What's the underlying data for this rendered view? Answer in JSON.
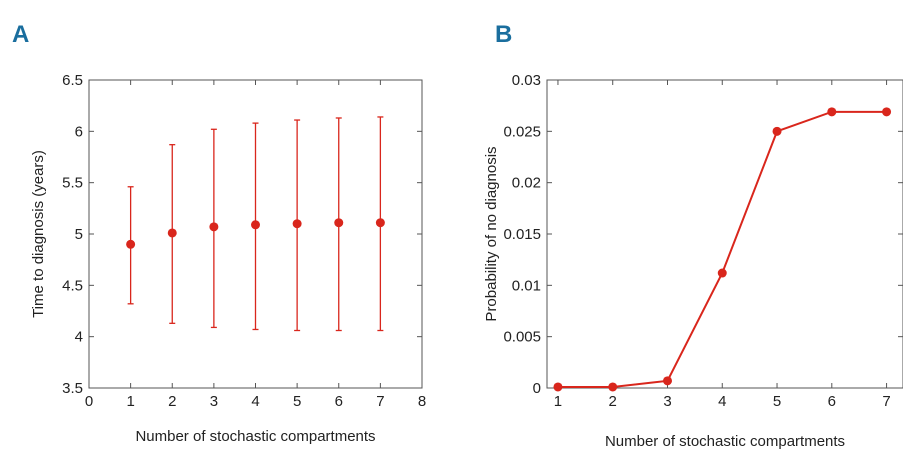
{
  "chart_data": [
    {
      "panel": "A",
      "type": "scatter",
      "error_bars": true,
      "xlabel": "Number of stochastic compartments",
      "ylabel": "Time to diagnosis (years)",
      "xlim": [
        0,
        8
      ],
      "ylim": [
        3.5,
        6.5
      ],
      "xticks": [
        "0",
        "1",
        "2",
        "3",
        "4",
        "5",
        "6",
        "7",
        "8"
      ],
      "yticks": [
        "3.5",
        "4",
        "4.5",
        "5",
        "5.5",
        "6",
        "6.5"
      ],
      "x": [
        1,
        2,
        3,
        4,
        5,
        6,
        7
      ],
      "y": [
        4.9,
        5.01,
        5.07,
        5.09,
        5.1,
        5.11,
        5.11
      ],
      "y_lower": [
        4.32,
        4.13,
        4.09,
        4.07,
        4.06,
        4.06,
        4.06
      ],
      "y_upper": [
        5.46,
        5.87,
        6.02,
        6.08,
        6.11,
        6.13,
        6.14
      ],
      "color": "#d9261c",
      "grid": false
    },
    {
      "panel": "B",
      "type": "line",
      "xlabel": "Number of stochastic compartments",
      "ylabel": "Probability of no diagnosis",
      "xlim": [
        0.8,
        7.3
      ],
      "ylim": [
        0,
        0.03
      ],
      "xticks": [
        "1",
        "2",
        "3",
        "4",
        "5",
        "6",
        "7"
      ],
      "yticks": [
        "0",
        "0.005",
        "0.01",
        "0.015",
        "0.02",
        "0.025",
        "0.03"
      ],
      "x": [
        1,
        2,
        3,
        4,
        5,
        6,
        7
      ],
      "y": [
        0.0001,
        0.0001,
        0.0007,
        0.0112,
        0.025,
        0.0269,
        0.0269
      ],
      "color": "#d9261c",
      "grid": false
    }
  ]
}
